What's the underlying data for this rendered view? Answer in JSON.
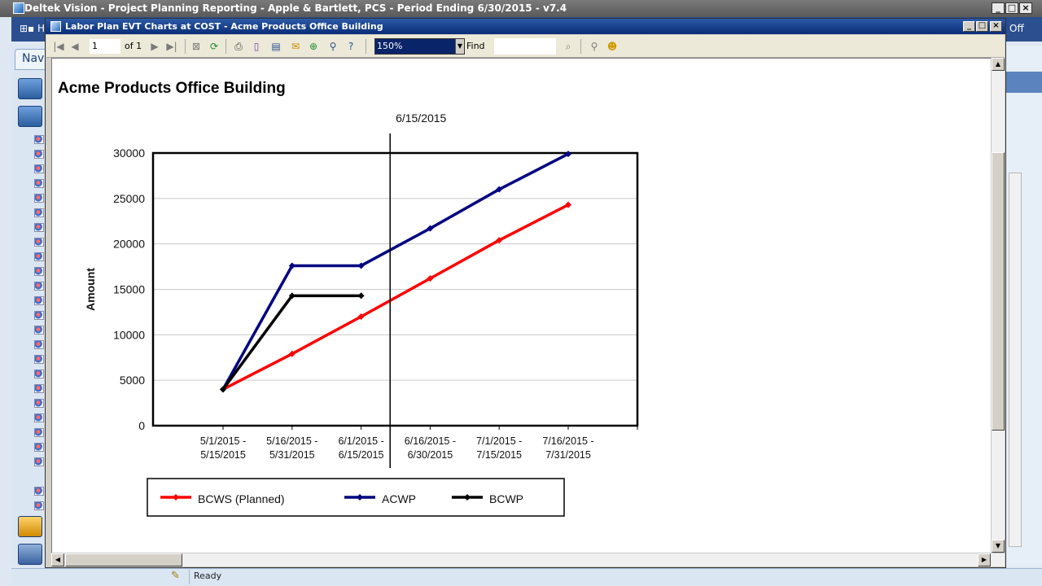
{
  "app": {
    "title": "Deltek Vision - Project Planning Reporting - Apple & Bartlett, PCS - Period Ending 6/30/2015 - v7.4",
    "menu_icon": "⊞▪ H",
    "nav_tab": "Nav",
    "right_label": "Off",
    "status": "Ready"
  },
  "viewer": {
    "title": "Labor Plan EVT Charts at COST - Acme Products Office Building",
    "page_current": "1",
    "page_of": "of  1",
    "zoom": "150%",
    "find_label": "Find",
    "find_value": ""
  },
  "report": {
    "title": "Acme Products Office Building"
  },
  "chart_data": {
    "type": "line",
    "title": "Acme Products Office Building",
    "ylabel": "Amount",
    "ylim": [
      0,
      30000
    ],
    "yticks": [
      0,
      5000,
      10000,
      15000,
      20000,
      25000,
      30000
    ],
    "grid": true,
    "legend": "bottom",
    "marker_label": "6/15/2015",
    "categories": [
      [
        "5/1/2015 -",
        "5/15/2015"
      ],
      [
        "5/16/2015 -",
        "5/31/2015"
      ],
      [
        "6/1/2015 -",
        "6/15/2015"
      ],
      [
        "6/16/2015 -",
        "6/30/2015"
      ],
      [
        "7/1/2015 -",
        "7/15/2015"
      ],
      [
        "7/16/2015 -",
        "7/31/2015"
      ]
    ],
    "series": [
      {
        "name": "BCWS (Planned)",
        "color": "#ff0000",
        "values": [
          4000,
          7900,
          12000,
          16200,
          20400,
          24300
        ]
      },
      {
        "name": "ACWP",
        "color": "#000080",
        "values": [
          4000,
          17600,
          17600,
          21700,
          26000,
          29900
        ]
      },
      {
        "name": "BCWP",
        "color": "#000000",
        "values": [
          4000,
          14300,
          14300,
          null,
          null,
          null
        ]
      }
    ]
  }
}
